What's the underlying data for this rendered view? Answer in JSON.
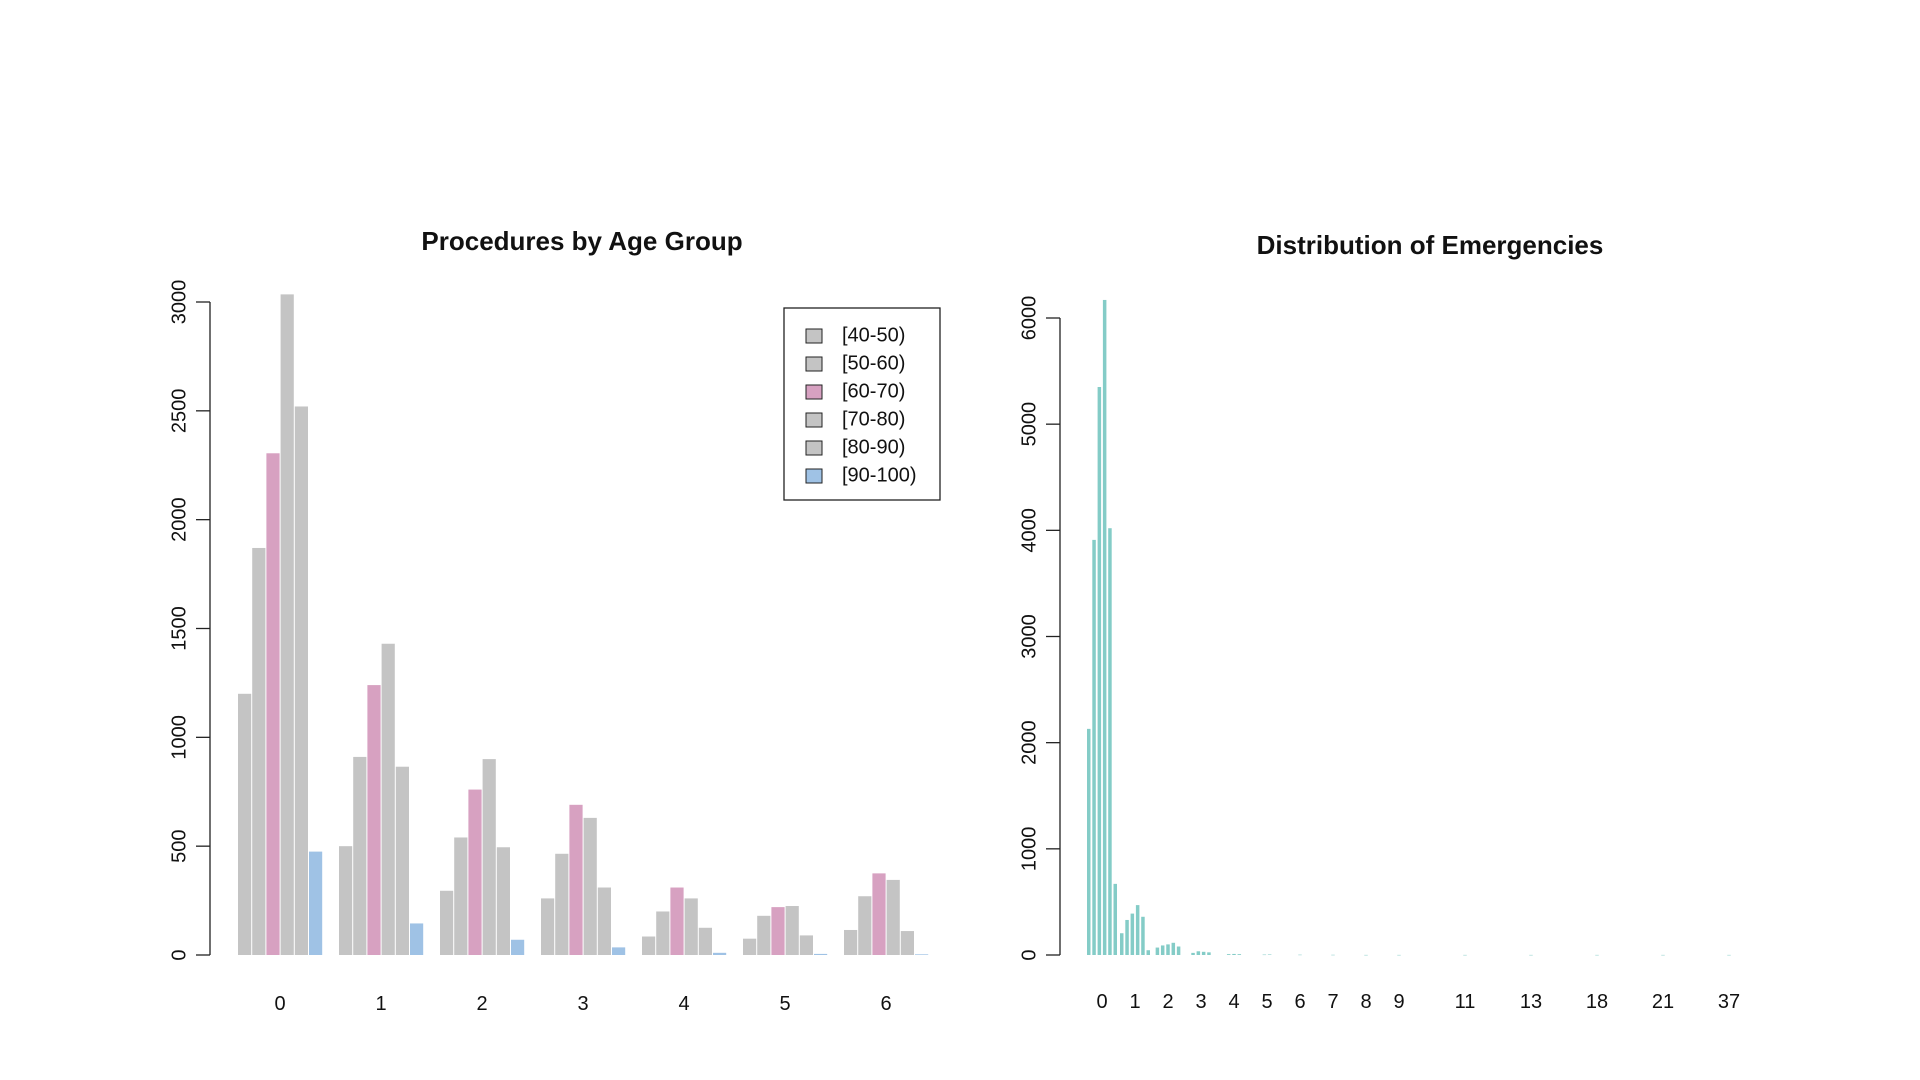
{
  "chart_data": [
    {
      "type": "bar",
      "title": "Procedures by Age Group",
      "xlabel": "",
      "ylabel": "",
      "categories": [
        "0",
        "1",
        "2",
        "3",
        "4",
        "5",
        "6"
      ],
      "series": [
        {
          "name": "[40-50)",
          "color": "#c4c4c4",
          "values": [
            1200,
            500,
            295,
            260,
            85,
            75,
            115
          ]
        },
        {
          "name": "[50-60)",
          "color": "#c4c4c4",
          "values": [
            1870,
            910,
            540,
            465,
            200,
            180,
            270
          ]
        },
        {
          "name": "[60-70)",
          "color": "#d7a1c1",
          "values": [
            2305,
            1240,
            760,
            690,
            310,
            220,
            375
          ]
        },
        {
          "name": "[70-80)",
          "color": "#c4c4c4",
          "values": [
            3035,
            1430,
            900,
            630,
            260,
            225,
            345
          ]
        },
        {
          "name": "[80-90)",
          "color": "#c4c4c4",
          "values": [
            2520,
            865,
            495,
            310,
            125,
            90,
            110
          ]
        },
        {
          "name": "[90-100)",
          "color": "#9fc2e5",
          "values": [
            475,
            145,
            70,
            35,
            10,
            5,
            3
          ]
        }
      ],
      "yticks": [
        0,
        500,
        1000,
        1500,
        2000,
        2500,
        3000
      ],
      "ylim": [
        0,
        3000
      ],
      "legend": "top-right",
      "grid": false
    },
    {
      "type": "bar",
      "title": "Distribution of Emergencies",
      "xlabel": "",
      "ylabel": "",
      "bar_color": "#84ccc7",
      "categories": [
        "0",
        "1",
        "2",
        "3",
        "4",
        "5",
        "6",
        "7",
        "8",
        "9",
        "11",
        "13",
        "18",
        "21",
        "37"
      ],
      "groups": [
        {
          "label": "0",
          "values": [
            2130,
            3910,
            5350,
            6170,
            4020,
            670
          ]
        },
        {
          "label": "1",
          "values": [
            205,
            330,
            390,
            470,
            360,
            45
          ]
        },
        {
          "label": "2",
          "values": [
            70,
            90,
            100,
            115,
            80
          ]
        },
        {
          "label": "3",
          "values": [
            20,
            35,
            30,
            25
          ]
        },
        {
          "label": "4",
          "values": [
            8,
            10,
            8
          ]
        },
        {
          "label": "5",
          "values": [
            4,
            5
          ]
        },
        {
          "label": "6",
          "values": [
            3
          ]
        },
        {
          "label": "7",
          "values": [
            2
          ]
        },
        {
          "label": "8",
          "values": [
            1
          ]
        },
        {
          "label": "9",
          "values": [
            1
          ]
        },
        {
          "label": "11",
          "values": [
            1
          ]
        },
        {
          "label": "13",
          "values": [
            1
          ]
        },
        {
          "label": "18",
          "values": [
            1
          ]
        },
        {
          "label": "21",
          "values": [
            1
          ]
        },
        {
          "label": "37",
          "values": [
            1
          ]
        }
      ],
      "yticks": [
        0,
        1000,
        2000,
        3000,
        4000,
        5000,
        6000
      ],
      "ylim": [
        0,
        6000
      ],
      "grid": false
    }
  ]
}
